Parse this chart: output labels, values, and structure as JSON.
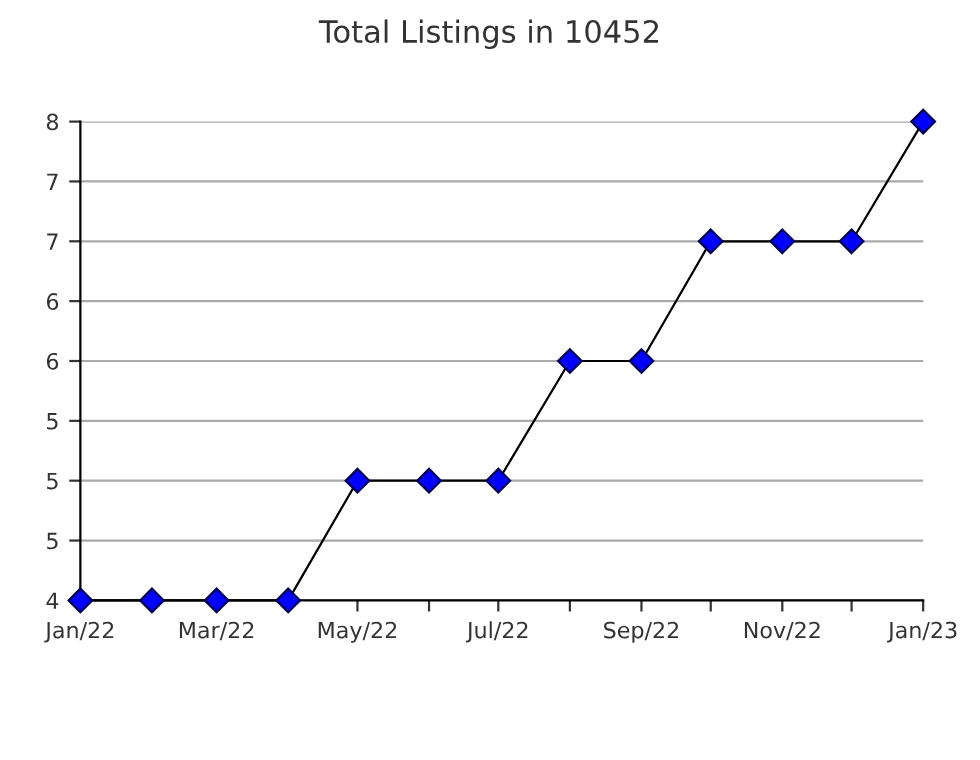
{
  "chart_data": {
    "type": "line",
    "title": "Total Listings in 10452",
    "x": [
      "2022-01",
      "2022-02",
      "2022-03",
      "2022-04",
      "2022-05",
      "2022-06",
      "2022-07",
      "2022-08",
      "2022-09",
      "2022-10",
      "2022-11",
      "2022-12",
      "2023-01"
    ],
    "series": [
      {
        "color": "#0000ff",
        "values": [
          4,
          4,
          4,
          4,
          5,
          5,
          5,
          6,
          6,
          7,
          7,
          7,
          8
        ]
      }
    ],
    "marker": "diamond",
    "xlim": [
      "2022-01",
      "2023-01"
    ],
    "xticks": [
      {
        "value": "2022-01",
        "label": "Jan/22"
      },
      {
        "value": "2022-02",
        "label": null
      },
      {
        "value": "2022-03",
        "label": "Mar/22"
      },
      {
        "value": "2022-04",
        "label": null
      },
      {
        "value": "2022-05",
        "label": "May/22"
      },
      {
        "value": "2022-06",
        "label": null
      },
      {
        "value": "2022-07",
        "label": "Jul/22"
      },
      {
        "value": "2022-08",
        "label": null
      },
      {
        "value": "2022-09",
        "label": "Sep/22"
      },
      {
        "value": "2022-10",
        "label": null
      },
      {
        "value": "2022-11",
        "label": "Nov/22"
      },
      {
        "value": "2022-12",
        "label": null
      },
      {
        "value": "2023-01",
        "label": "Jan/23"
      }
    ],
    "ylim": [
      4,
      8
    ],
    "yticks": [
      4,
      {
        "value": 4.5,
        "label": "5"
      },
      5,
      {
        "value": 5.5,
        "label": "5"
      },
      6,
      {
        "value": 6.5,
        "label": "6"
      },
      7,
      {
        "value": 7.5,
        "label": "7"
      },
      8
    ],
    "grid": "y"
  }
}
